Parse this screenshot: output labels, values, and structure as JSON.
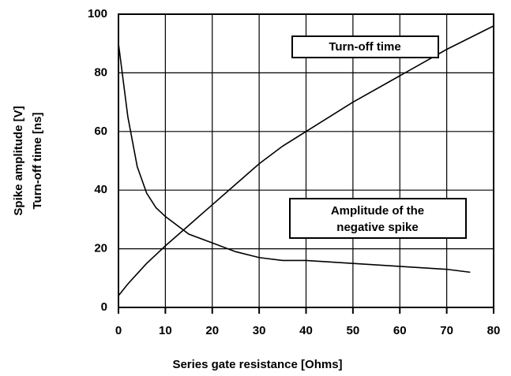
{
  "chart_data": {
    "type": "line",
    "x": [
      0,
      2,
      4,
      6,
      8,
      10,
      15,
      20,
      25,
      30,
      35,
      40,
      50,
      60,
      70,
      75,
      80
    ],
    "series": [
      {
        "color": "#000000",
        "values": [
          4,
          8,
          11.5,
          15,
          18,
          21,
          28,
          35,
          42,
          49,
          55,
          60,
          70,
          79,
          88,
          92,
          96
        ]
      },
      {
        "color": "#000000",
        "values": [
          90,
          65,
          48,
          39,
          34,
          31,
          25,
          22,
          19,
          17,
          16,
          16,
          15,
          14,
          13,
          12,
          null
        ]
      }
    ],
    "annotations": [
      {
        "text": "Turn-off time"
      },
      {
        "lines": [
          "Amplitude of the",
          "negative spike"
        ]
      }
    ],
    "xlabel": "Series gate resistance [Ohms]",
    "ylabel": [
      "Spike amplitude [V]",
      "Turn-off time [ns]"
    ],
    "xlim": [
      0,
      80
    ],
    "xticks": [
      0,
      10,
      20,
      30,
      40,
      50,
      60,
      70,
      80
    ],
    "ylim": [
      0,
      100
    ],
    "yticks": [
      0,
      20,
      40,
      60,
      80,
      100
    ],
    "grid": true
  }
}
